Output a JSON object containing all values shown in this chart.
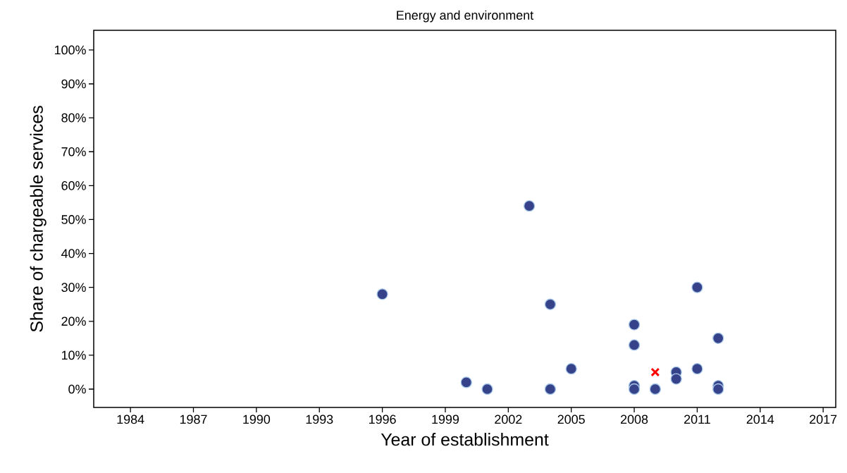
{
  "chart_data": {
    "type": "scatter",
    "title": "Energy and environment",
    "xlabel": "Year of establishment",
    "ylabel": "Share of chargeable services",
    "series": [
      {
        "marker": "circle",
        "color": "#36428a",
        "x": [
          1996,
          2000,
          2001,
          2003,
          2004,
          2004,
          2005,
          2008,
          2008,
          2008,
          2008,
          2009,
          2010,
          2010,
          2011,
          2011,
          2012,
          2012,
          2012
        ],
        "values": [
          28,
          2,
          0,
          54,
          25,
          0,
          6,
          19,
          13,
          1,
          0,
          0,
          5,
          3,
          30,
          6,
          15,
          1,
          0
        ]
      },
      {
        "marker": "cross",
        "color": "#ff0000",
        "x": [
          2009
        ],
        "values": [
          5
        ]
      }
    ],
    "xlim": [
      1982.25,
      2017.6
    ],
    "ylim": [
      -5.4,
      105.8
    ],
    "xticks": [
      1984,
      1987,
      1990,
      1993,
      1996,
      1999,
      2002,
      2005,
      2008,
      2011,
      2014,
      2017
    ],
    "yticks": [
      {
        "value": 0,
        "label": "0%"
      },
      {
        "value": 10,
        "label": "10%"
      },
      {
        "value": 20,
        "label": "20%"
      },
      {
        "value": 30,
        "label": "30%"
      },
      {
        "value": 40,
        "label": "40%"
      },
      {
        "value": 50,
        "label": "50%"
      },
      {
        "value": 60,
        "label": "60%"
      },
      {
        "value": 70,
        "label": "70%"
      },
      {
        "value": 80,
        "label": "80%"
      },
      {
        "value": 90,
        "label": "90%"
      },
      {
        "value": 100,
        "label": "100%"
      }
    ],
    "grid": false
  }
}
